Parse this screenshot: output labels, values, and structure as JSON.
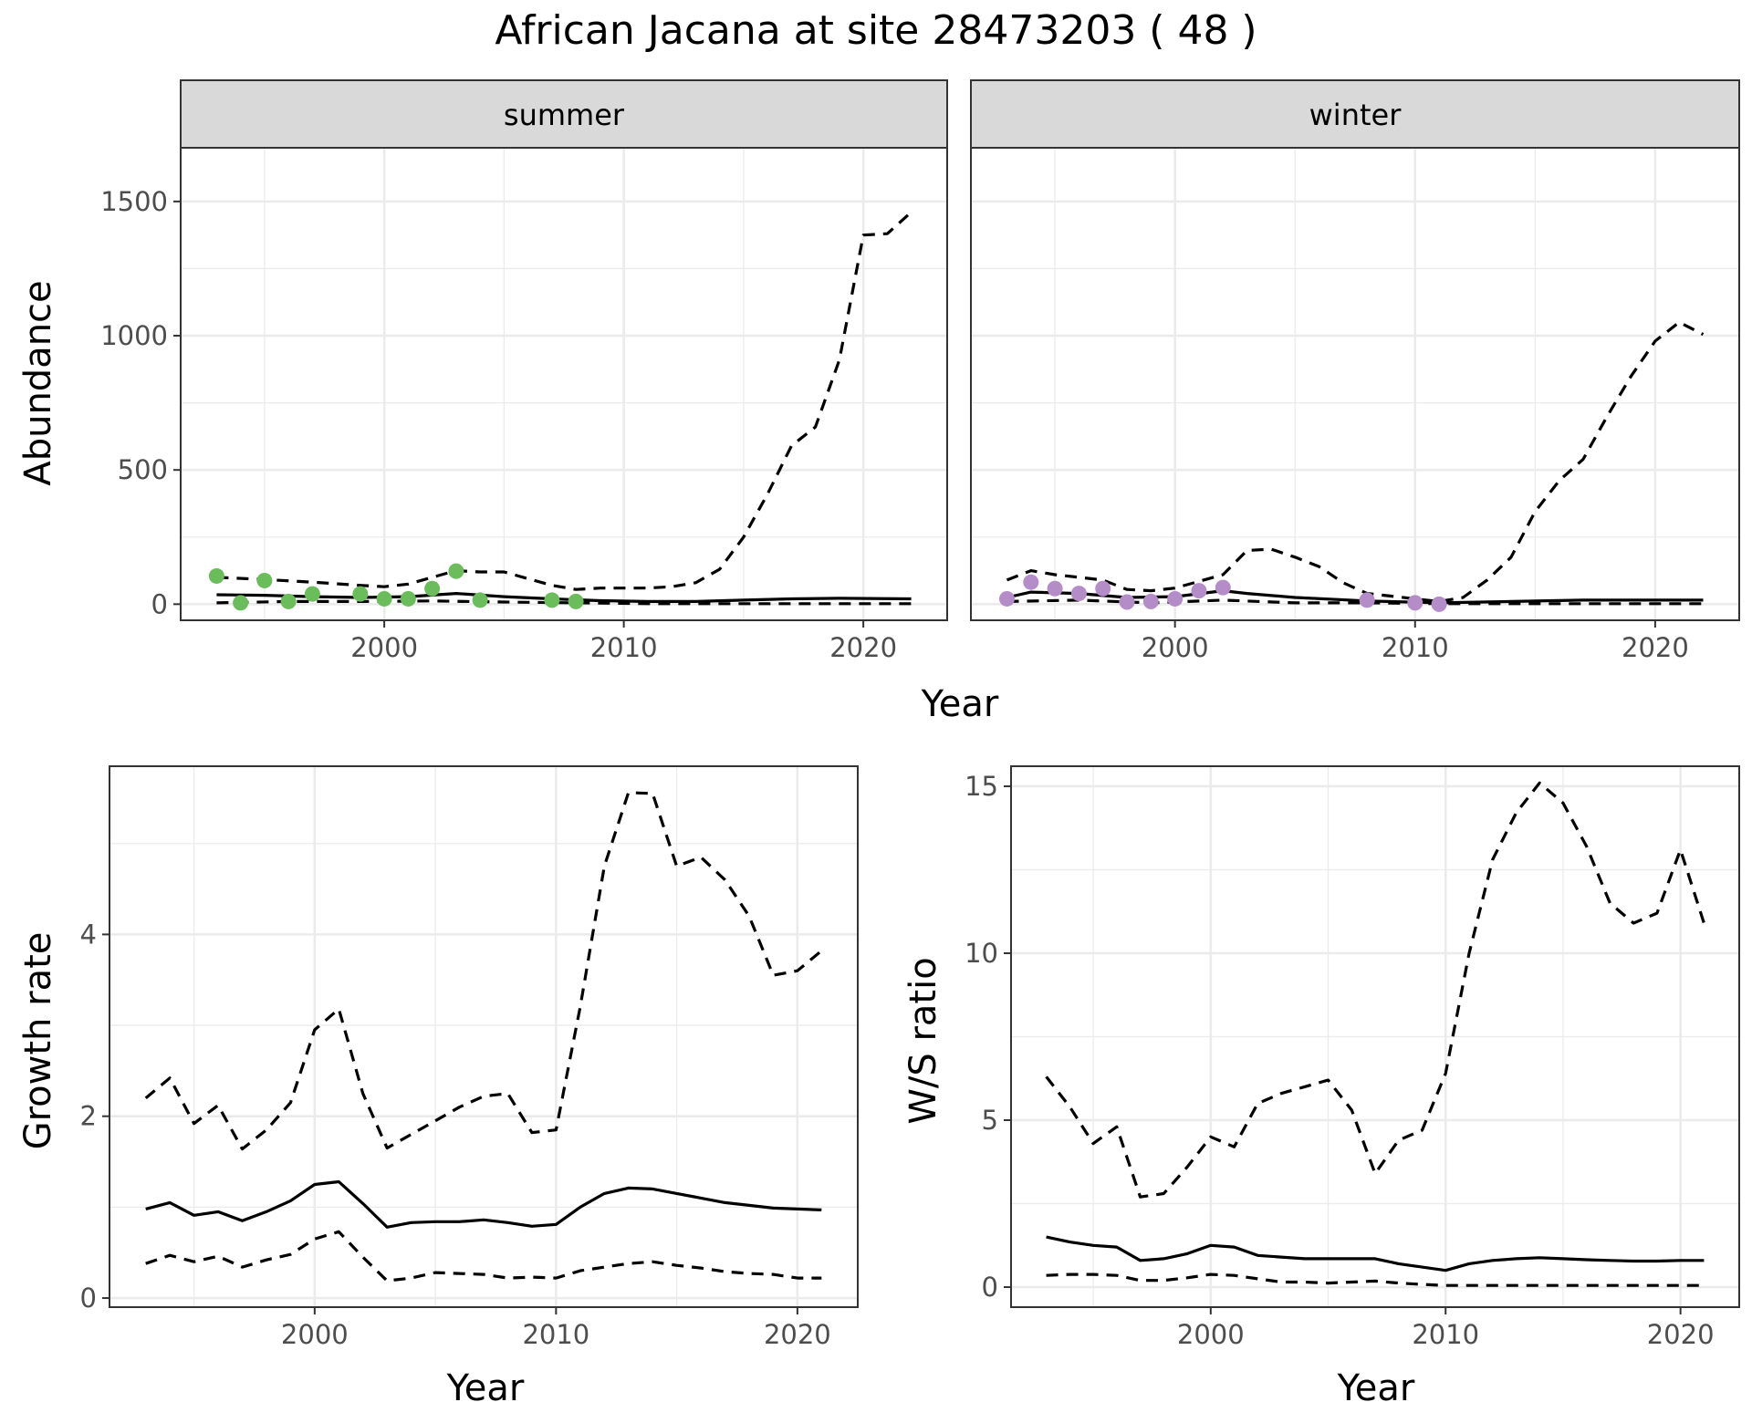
{
  "title": "African Jacana at site 28473203 ( 48 )",
  "colors": {
    "summer_points": "#6ABD5A",
    "winter_points": "#B48CC8",
    "strip_bg": "#D9D9D9",
    "grid": "#EBEBEB",
    "line": "#000000"
  },
  "chart_data": [
    {
      "type": "line",
      "layout": "faceted",
      "ylabel": "Abundance",
      "xlabel": "Year",
      "xlim": [
        1991.5,
        2023.5
      ],
      "ylim": [
        -60,
        1700
      ],
      "x_ticks": [
        2000,
        2010,
        2020
      ],
      "y_ticks": [
        0,
        500,
        1000,
        1500
      ],
      "grid": true,
      "panels": [
        {
          "strip": "summer",
          "series": [
            {
              "style": "solid",
              "x": [
                1993,
                1995,
                1997,
                1999,
                2001,
                2003,
                2005,
                2007,
                2009,
                2011,
                2013,
                2015,
                2017,
                2019,
                2022
              ],
              "y": [
                35,
                33,
                28,
                25,
                28,
                40,
                28,
                20,
                13,
                10,
                10,
                15,
                20,
                22,
                20
              ]
            },
            {
              "style": "dashed",
              "x": [
                1993,
                1995,
                1997,
                1999,
                2000,
                2001,
                2002,
                2003,
                2004,
                2005,
                2006,
                2007,
                2008,
                2009,
                2010,
                2011,
                2012,
                2013,
                2014,
                2015,
                2016,
                2017,
                2018,
                2019,
                2020,
                2021,
                2022
              ],
              "y": [
                100,
                92,
                82,
                70,
                65,
                75,
                100,
                125,
                120,
                120,
                95,
                70,
                55,
                60,
                60,
                60,
                65,
                80,
                130,
                250,
                410,
                590,
                660,
                910,
                1375,
                1380,
                1460
              ]
            },
            {
              "style": "dashed",
              "x": [
                1993,
                1996,
                1999,
                2002,
                2005,
                2008,
                2011,
                2014,
                2017,
                2020,
                2022
              ],
              "y": [
                5,
                10,
                10,
                12,
                8,
                5,
                2,
                2,
                2,
                2,
                2
              ]
            }
          ],
          "points": [
            {
              "x": 1993,
              "y": 105
            },
            {
              "x": 1994,
              "y": 5
            },
            {
              "x": 1995,
              "y": 88
            },
            {
              "x": 1996,
              "y": 10
            },
            {
              "x": 1997,
              "y": 38
            },
            {
              "x": 1999,
              "y": 38
            },
            {
              "x": 2000,
              "y": 20
            },
            {
              "x": 2001,
              "y": 20
            },
            {
              "x": 2002,
              "y": 58
            },
            {
              "x": 2003,
              "y": 123
            },
            {
              "x": 2004,
              "y": 15
            },
            {
              "x": 2007,
              "y": 15
            },
            {
              "x": 2008,
              "y": 10
            }
          ]
        },
        {
          "strip": "winter",
          "series": [
            {
              "style": "solid",
              "x": [
                1993,
                1994,
                1996,
                1998,
                2000,
                2002,
                2003,
                2005,
                2008,
                2011,
                2014,
                2017,
                2022
              ],
              "y": [
                25,
                45,
                40,
                25,
                28,
                50,
                40,
                25,
                12,
                5,
                10,
                15,
                15
              ]
            },
            {
              "style": "dashed",
              "x": [
                1993,
                1994,
                1995,
                1996,
                1997,
                1998,
                1999,
                2000,
                2001,
                2002,
                2003,
                2004,
                2005,
                2006,
                2007,
                2008,
                2009,
                2010,
                2011,
                2012,
                2013,
                2014,
                2015,
                2016,
                2017,
                2018,
                2019,
                2020,
                2021,
                2022
              ],
              "y": [
                90,
                125,
                110,
                100,
                90,
                55,
                50,
                60,
                85,
                110,
                200,
                205,
                175,
                140,
                80,
                40,
                30,
                20,
                10,
                25,
                90,
                175,
                345,
                460,
                540,
                700,
                850,
                980,
                1050,
                1005
              ]
            },
            {
              "style": "dashed",
              "x": [
                1993,
                1996,
                1999,
                2002,
                2005,
                2008,
                2011,
                2014,
                2017,
                2020,
                2022
              ],
              "y": [
                10,
                15,
                5,
                15,
                5,
                5,
                2,
                2,
                2,
                2,
                2
              ]
            }
          ],
          "points": [
            {
              "x": 1993,
              "y": 20
            },
            {
              "x": 1994,
              "y": 82
            },
            {
              "x": 1995,
              "y": 58
            },
            {
              "x": 1996,
              "y": 40
            },
            {
              "x": 1997,
              "y": 58
            },
            {
              "x": 1998,
              "y": 8
            },
            {
              "x": 1999,
              "y": 10
            },
            {
              "x": 2000,
              "y": 20
            },
            {
              "x": 2001,
              "y": 50
            },
            {
              "x": 2002,
              "y": 62
            },
            {
              "x": 2008,
              "y": 15
            },
            {
              "x": 2010,
              "y": 5
            },
            {
              "x": 2011,
              "y": 0
            }
          ]
        }
      ]
    },
    {
      "type": "line",
      "ylabel": "Growth rate",
      "xlabel": "Year",
      "xlim": [
        1991.5,
        2022.5
      ],
      "ylim": [
        -0.1,
        5.85
      ],
      "x_ticks": [
        2000,
        2010,
        2020
      ],
      "y_ticks": [
        0,
        2,
        4
      ],
      "grid": true,
      "series": [
        {
          "style": "solid",
          "x": [
            1993,
            1994,
            1995,
            1996,
            1997,
            1998,
            1999,
            2000,
            2001,
            2002,
            2003,
            2004,
            2005,
            2006,
            2007,
            2008,
            2009,
            2010,
            2011,
            2012,
            2013,
            2014,
            2015,
            2016,
            2017,
            2018,
            2019,
            2020,
            2021
          ],
          "y": [
            0.98,
            1.05,
            0.91,
            0.95,
            0.85,
            0.95,
            1.07,
            1.25,
            1.28,
            1.04,
            0.78,
            0.83,
            0.84,
            0.84,
            0.86,
            0.83,
            0.79,
            0.81,
            1.0,
            1.15,
            1.21,
            1.2,
            1.15,
            1.1,
            1.05,
            1.02,
            0.99,
            0.98,
            0.97
          ]
        },
        {
          "style": "dashed",
          "x": [
            1993,
            1994,
            1995,
            1996,
            1997,
            1998,
            1999,
            2000,
            2001,
            2002,
            2003,
            2004,
            2005,
            2006,
            2007,
            2008,
            2009,
            2010,
            2011,
            2012,
            2013,
            2014,
            2015,
            2016,
            2017,
            2018,
            2019,
            2020,
            2021
          ],
          "y": [
            2.2,
            2.42,
            1.92,
            2.12,
            1.64,
            1.85,
            2.15,
            2.95,
            3.18,
            2.25,
            1.65,
            1.8,
            1.95,
            2.1,
            2.22,
            2.25,
            1.82,
            1.85,
            3.2,
            4.75,
            5.56,
            5.55,
            4.75,
            4.85,
            4.6,
            4.2,
            3.55,
            3.6,
            3.82
          ]
        },
        {
          "style": "dashed",
          "x": [
            1993,
            1994,
            1995,
            1996,
            1997,
            1998,
            1999,
            2000,
            2001,
            2002,
            2003,
            2004,
            2005,
            2006,
            2007,
            2008,
            2009,
            2010,
            2011,
            2012,
            2013,
            2014,
            2015,
            2016,
            2017,
            2018,
            2019,
            2020,
            2021
          ],
          "y": [
            0.38,
            0.47,
            0.4,
            0.46,
            0.34,
            0.42,
            0.48,
            0.65,
            0.73,
            0.45,
            0.19,
            0.22,
            0.28,
            0.27,
            0.26,
            0.22,
            0.23,
            0.22,
            0.3,
            0.34,
            0.38,
            0.4,
            0.36,
            0.33,
            0.29,
            0.27,
            0.26,
            0.22,
            0.22
          ]
        }
      ]
    },
    {
      "type": "line",
      "ylabel": "W/S ratio",
      "xlabel": "Year",
      "xlim": [
        1991.5,
        2022.5
      ],
      "ylim": [
        -0.6,
        15.6
      ],
      "x_ticks": [
        2000,
        2010,
        2020
      ],
      "y_ticks": [
        0,
        5,
        10,
        15
      ],
      "grid": true,
      "series": [
        {
          "style": "solid",
          "x": [
            1993,
            1994,
            1995,
            1996,
            1997,
            1998,
            1999,
            2000,
            2001,
            2002,
            2003,
            2004,
            2005,
            2006,
            2007,
            2008,
            2009,
            2010,
            2011,
            2012,
            2013,
            2014,
            2015,
            2016,
            2017,
            2018,
            2019,
            2020,
            2021
          ],
          "y": [
            1.5,
            1.35,
            1.25,
            1.2,
            0.8,
            0.85,
            1.0,
            1.25,
            1.2,
            0.95,
            0.9,
            0.85,
            0.85,
            0.85,
            0.85,
            0.7,
            0.6,
            0.5,
            0.7,
            0.8,
            0.85,
            0.88,
            0.85,
            0.82,
            0.8,
            0.78,
            0.78,
            0.8,
            0.8
          ]
        },
        {
          "style": "dashed",
          "x": [
            1993,
            1994,
            1995,
            1996,
            1997,
            1998,
            1999,
            2000,
            2001,
            2002,
            2003,
            2004,
            2005,
            2006,
            2007,
            2008,
            2009,
            2010,
            2011,
            2012,
            2013,
            2014,
            2015,
            2016,
            2017,
            2018,
            2019,
            2020,
            2021
          ],
          "y": [
            6.3,
            5.4,
            4.3,
            4.8,
            2.7,
            2.8,
            3.6,
            4.5,
            4.2,
            5.5,
            5.8,
            6.0,
            6.2,
            5.3,
            3.4,
            4.4,
            4.7,
            6.4,
            10.0,
            12.8,
            14.2,
            15.1,
            14.5,
            13.2,
            11.5,
            10.9,
            11.2,
            13.1,
            10.9
          ]
        },
        {
          "style": "dashed",
          "x": [
            1993,
            1994,
            1995,
            1996,
            1997,
            1998,
            1999,
            2000,
            2001,
            2002,
            2003,
            2004,
            2005,
            2006,
            2007,
            2008,
            2009,
            2010,
            2011,
            2012,
            2013,
            2014,
            2015,
            2016,
            2017,
            2018,
            2019,
            2020,
            2021
          ],
          "y": [
            0.35,
            0.38,
            0.38,
            0.35,
            0.2,
            0.2,
            0.28,
            0.38,
            0.35,
            0.25,
            0.15,
            0.15,
            0.12,
            0.15,
            0.18,
            0.12,
            0.08,
            0.05,
            0.05,
            0.05,
            0.05,
            0.05,
            0.05,
            0.05,
            0.05,
            0.05,
            0.05,
            0.05,
            0.05
          ]
        }
      ]
    }
  ]
}
